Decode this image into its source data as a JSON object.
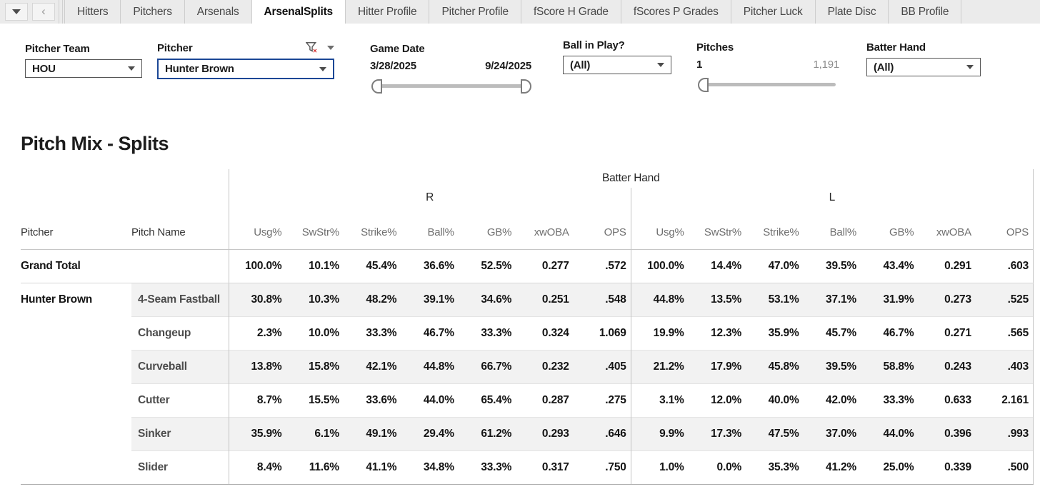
{
  "tabbar": {
    "tabs": [
      {
        "label": "Hitters",
        "active": false
      },
      {
        "label": "Pitchers",
        "active": false
      },
      {
        "label": "Arsenals",
        "active": false
      },
      {
        "label": "ArsenalSplits",
        "active": true
      },
      {
        "label": "Hitter Profile",
        "active": false
      },
      {
        "label": "Pitcher Profile",
        "active": false
      },
      {
        "label": "fScore H Grade",
        "active": false
      },
      {
        "label": "fScores P Grades",
        "active": false
      },
      {
        "label": "Pitcher Luck",
        "active": false
      },
      {
        "label": "Plate Disc",
        "active": false
      },
      {
        "label": "BB Profile",
        "active": false
      }
    ]
  },
  "filters": {
    "pitcher_team": {
      "label": "Pitcher Team",
      "value": "HOU"
    },
    "pitcher": {
      "label": "Pitcher",
      "value": "Hunter Brown"
    },
    "game_date": {
      "label": "Game Date",
      "start": "3/28/2025",
      "end": "9/24/2025"
    },
    "ball_in_play": {
      "label": "Ball in Play?",
      "value": "(All)"
    },
    "pitches": {
      "label": "Pitches",
      "min": "1",
      "max": "1,191"
    },
    "batter_hand": {
      "label": "Batter Hand",
      "value": "(All)"
    }
  },
  "icons": {
    "filter_clear": "funnel-with-red-x",
    "dropdown_caret": "caret-down"
  },
  "colors": {
    "focus_border": "#1b4796",
    "filter_x_red": "#d62f2f",
    "row_stripe": "#f2f2f2"
  },
  "main": {
    "title": "Pitch Mix - Splits",
    "table": {
      "group_field_label": "Batter Hand",
      "row_fields": [
        "Pitcher",
        "Pitch Name"
      ],
      "groups": [
        "R",
        "L"
      ],
      "metrics": [
        "Usg%",
        "SwStr%",
        "Strike%",
        "Ball%",
        "GB%",
        "xwOBA",
        "OPS"
      ],
      "rows": [
        {
          "pitcher": "Grand Total",
          "pitch": "",
          "R": [
            "100.0%",
            "10.1%",
            "45.4%",
            "36.6%",
            "52.5%",
            "0.277",
            ".572"
          ],
          "L": [
            "100.0%",
            "14.4%",
            "47.0%",
            "39.5%",
            "43.4%",
            "0.291",
            ".603"
          ]
        },
        {
          "pitcher": "Hunter Brown",
          "pitch": "4-Seam Fastball",
          "R": [
            "30.8%",
            "10.3%",
            "48.2%",
            "39.1%",
            "34.6%",
            "0.251",
            ".548"
          ],
          "L": [
            "44.8%",
            "13.5%",
            "53.1%",
            "37.1%",
            "31.9%",
            "0.273",
            ".525"
          ]
        },
        {
          "pitcher": "",
          "pitch": "Changeup",
          "R": [
            "2.3%",
            "10.0%",
            "33.3%",
            "46.7%",
            "33.3%",
            "0.324",
            "1.069"
          ],
          "L": [
            "19.9%",
            "12.3%",
            "35.9%",
            "45.7%",
            "46.7%",
            "0.271",
            ".565"
          ]
        },
        {
          "pitcher": "",
          "pitch": "Curveball",
          "R": [
            "13.8%",
            "15.8%",
            "42.1%",
            "44.8%",
            "66.7%",
            "0.232",
            ".405"
          ],
          "L": [
            "21.2%",
            "17.9%",
            "45.8%",
            "39.5%",
            "58.8%",
            "0.243",
            ".403"
          ]
        },
        {
          "pitcher": "",
          "pitch": "Cutter",
          "R": [
            "8.7%",
            "15.5%",
            "33.6%",
            "44.0%",
            "65.4%",
            "0.287",
            ".275"
          ],
          "L": [
            "3.1%",
            "12.0%",
            "40.0%",
            "42.0%",
            "33.3%",
            "0.633",
            "2.161"
          ]
        },
        {
          "pitcher": "",
          "pitch": "Sinker",
          "R": [
            "35.9%",
            "6.1%",
            "49.1%",
            "29.4%",
            "61.2%",
            "0.293",
            ".646"
          ],
          "L": [
            "9.9%",
            "17.3%",
            "47.5%",
            "37.0%",
            "44.0%",
            "0.396",
            ".993"
          ]
        },
        {
          "pitcher": "",
          "pitch": "Slider",
          "R": [
            "8.4%",
            "11.6%",
            "41.1%",
            "34.8%",
            "33.3%",
            "0.317",
            ".750"
          ],
          "L": [
            "1.0%",
            "0.0%",
            "35.3%",
            "41.2%",
            "25.0%",
            "0.339",
            ".500"
          ]
        }
      ]
    }
  }
}
